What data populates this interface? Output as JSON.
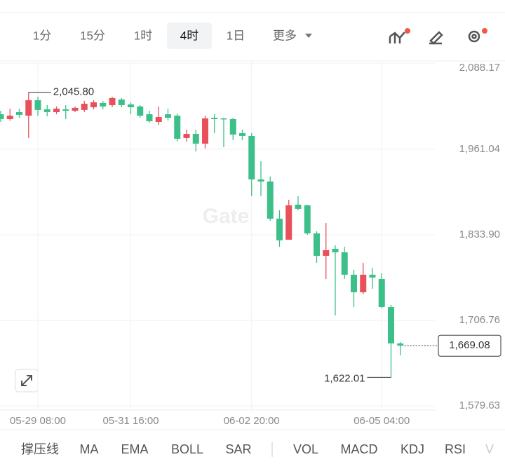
{
  "toolbar": {
    "intervals": [
      "1分",
      "15分",
      "1时",
      "4时",
      "1日"
    ],
    "active_interval": 3,
    "more": "更多"
  },
  "indicators": [
    "撑压线",
    "MA",
    "EMA",
    "BOLL",
    "SAR",
    "VOL",
    "MACD",
    "KDJ",
    "RSI",
    "V"
  ],
  "chart_data": {
    "type": "candlestick",
    "watermark": "Gate",
    "categories": [
      null,
      null,
      null,
      null,
      "05-29 08:00",
      null,
      null,
      null,
      null,
      null,
      null,
      null,
      null,
      null,
      "05-31 16:00",
      null,
      null,
      null,
      null,
      null,
      null,
      null,
      null,
      null,
      null,
      null,
      null,
      "06-02 20:00",
      null,
      null,
      null,
      null,
      null,
      null,
      null,
      null,
      null,
      null,
      null,
      null,
      null,
      "06-05 04:00",
      null,
      null
    ],
    "open": [
      2013.1,
      2005.8,
      2016.2,
      2011.0,
      2033.9,
      2020.4,
      2016.2,
      2020.4,
      2018.3,
      2019.4,
      2023.5,
      2029.8,
      2026.6,
      2035.0,
      2027.7,
      2024.6,
      2013.1,
      2001.6,
      2013.1,
      2011.0,
      1977.7,
      1983.9,
      1969.4,
      2007.9,
      2006.9,
      2005.8,
      1985.0,
      1980.8,
      1916.2,
      1913.1,
      1857.9,
      1826.6,
      1878.7,
      1877.7,
      1836.0,
      1802.7,
      1813.1,
      1807.9,
      1774.6,
      1748.5,
      1774.6,
      1768.3,
      1726.6,
      1672.5
    ],
    "high": [
      2018.3,
      2021.4,
      2021.4,
      2045.8,
      2039.1,
      2026.6,
      2024.6,
      2026.6,
      2024.6,
      2032.9,
      2033.9,
      2032.9,
      2039.1,
      2037.1,
      2030.8,
      2026.6,
      2018.3,
      2024.6,
      2021.4,
      2014.1,
      1990.2,
      1990.2,
      2011.0,
      2013.1,
      2007.9,
      2007.9,
      1990.2,
      1985.0,
      1943.3,
      1920.4,
      1870.4,
      1886.0,
      1891.2,
      1878.7,
      1839.1,
      1851.6,
      1818.3,
      1816.2,
      1781.9,
      1792.3,
      1785.0,
      1776.6,
      1729.8,
      1674.6
    ],
    "low": [
      2001.6,
      2003.7,
      2007.9,
      1977.7,
      2011.0,
      2010.0,
      2013.1,
      2005.8,
      2016.2,
      2016.2,
      2020.4,
      2020.4,
      2023.5,
      2023.5,
      2013.1,
      2007.9,
      2000.6,
      1997.5,
      2003.7,
      1972.5,
      1972.5,
      1957.9,
      1962.1,
      1985.0,
      1964.1,
      1974.6,
      1974.6,
      1891.2,
      1891.2,
      1854.8,
      1816.2,
      1826.6,
      1870.4,
      1833.9,
      1792.3,
      1768.3,
      1714.1,
      1768.3,
      1726.6,
      1745.4,
      1753.7,
      1724.6,
      1622.01,
      1654.8
    ],
    "close": [
      2005.8,
      2011.0,
      2012.1,
      2033.9,
      2019.4,
      2016.2,
      2021.4,
      2018.3,
      2022.5,
      2028.7,
      2030.8,
      2024.6,
      2037.1,
      2026.6,
      2023.5,
      2011.0,
      2002.7,
      2008.9,
      2007.9,
      1976.6,
      1983.9,
      1969.4,
      2006.9,
      2005.8,
      2005.8,
      1982.9,
      1980.8,
      1916.2,
      1913.1,
      1857.9,
      1825.6,
      1877.7,
      1872.5,
      1836.0,
      1802.7,
      1811.0,
      1807.9,
      1774.6,
      1748.5,
      1774.6,
      1770.4,
      1726.6,
      1672.5,
      1669.08
    ],
    "up_color": "#e8505b",
    "down_color": "#3dbf8a",
    "ylim": [
      1573.5,
      2091.2
    ],
    "yticks": [
      {
        "value": 1579.63,
        "label": "1,579.63"
      },
      {
        "value": 1706.76,
        "label": "1,706.76"
      },
      {
        "value": 1833.9,
        "label": "1,833.90"
      },
      {
        "value": 1961.04,
        "label": "1,961.04"
      },
      {
        "value": 2088.17,
        "label": "2,088.17"
      }
    ],
    "grid": true,
    "annotations": [
      {
        "kind": "high",
        "value": 2045.8,
        "label": "2,045.80"
      },
      {
        "kind": "low",
        "value": 1622.01,
        "label": "1,622.01"
      },
      {
        "kind": "last",
        "value": 1669.08,
        "label": "1,669.08"
      }
    ]
  }
}
